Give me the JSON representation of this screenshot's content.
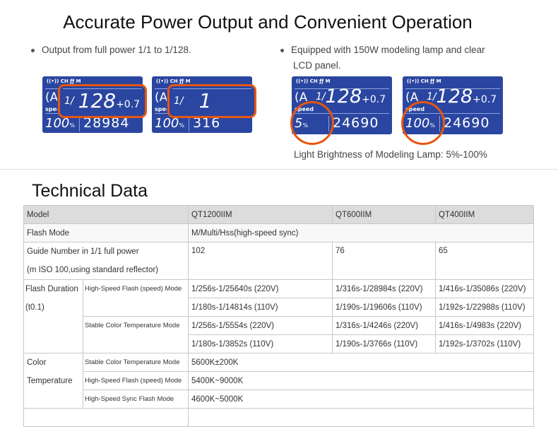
{
  "title": "Accurate Power Output and Convenient Operation",
  "bullets": [
    "Output from full power 1/1 to 1/128.",
    "Equipped with 150W modeling lamp and clear",
    "LCD panel."
  ],
  "lcd": {
    "status": "((•)) CH ƒƒ M",
    "mode": "(A",
    "speed_label": "speed",
    "panels": [
      {
        "power": "1/",
        "value": "128",
        "ev": "+0.7",
        "pct": "100",
        "count": "28984"
      },
      {
        "power": "1/",
        "value": "1",
        "ev": "",
        "pct": "100",
        "count": "316"
      },
      {
        "power": "1/",
        "value": "128",
        "ev": "+0.7",
        "pct": "5",
        "count": "24690"
      },
      {
        "power": "1/",
        "value": "128",
        "ev": "+0.7",
        "pct": "100",
        "count": "24690"
      }
    ],
    "pct_unit": "%",
    "highlight_color": "#e8560f",
    "lcd_color": "#2a46a0"
  },
  "caption": "Light Brightness of Modeling Lamp: 5%-100%",
  "section_title": "Technical Data",
  "table": {
    "header": [
      "Model",
      "QT1200IIM",
      "QT600IIM",
      "QT400IIM"
    ],
    "flash_mode": [
      "Flash Mode",
      "M/Multi/Hss(high-speed sync)"
    ],
    "guide": [
      "Guide Number in 1/1 full power",
      "(m ISO 100,using standard reflector)",
      "102",
      "76",
      "65"
    ],
    "flash_duration": {
      "label": [
        "Flash Duration",
        "(t0.1)"
      ],
      "modes": [
        {
          "name": "High-Speed Flash (speed) Mode",
          "rows": [
            [
              "1/256s-1/25640s (220V)",
              "1/316s-1/28984s (220V)",
              "1/416s-1/35086s (220V)"
            ],
            [
              "1/180s-1/14814s (110V)",
              "1/190s-1/19606s (110V)",
              "1/192s-1/22988s (110V)"
            ]
          ]
        },
        {
          "name": "Stable Color Temperature Mode",
          "rows": [
            [
              "1/256s-1/5554s (220V)",
              "1/316s-1/4246s (220V)",
              "1/416s-1/4983s (220V)"
            ],
            [
              "1/180s-1/3852s (110V)",
              "1/190s-1/3766s (110V)",
              "1/192s-1/3702s (110V)"
            ]
          ]
        }
      ]
    },
    "color_temp": {
      "label": [
        "Color",
        "Temperature"
      ],
      "rows": [
        [
          "Stable Color Temperature Mode",
          "5600K±200K"
        ],
        [
          "High-Speed Flash (speed) Mode",
          "5400K~9000K"
        ],
        [
          "High-Speed Sync Flash Mode",
          "4600K~5000K"
        ]
      ]
    }
  }
}
